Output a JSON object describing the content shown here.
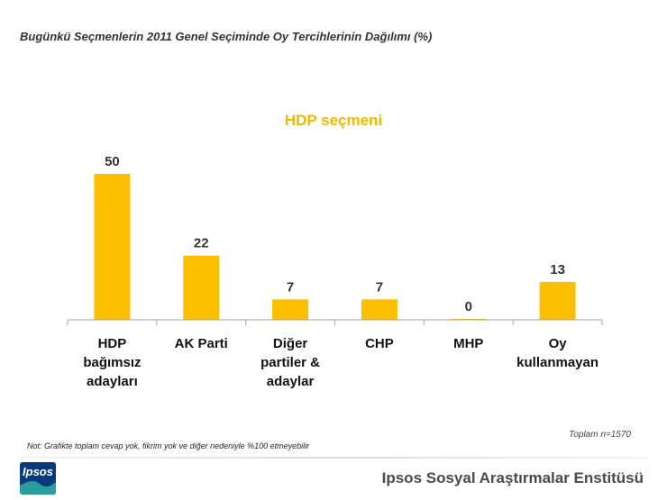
{
  "page": {
    "title": "Bugünkü Seçmenlerin 2011 Genel Seçiminde Oy Tercihlerinin Dağılımı (%)",
    "sample_note": "Toplam n=1570",
    "footnote": "Not: Grafikte toplam cevap yok, fikrim yok ve diğer nedeniyle %100 etmeyebilir",
    "institute": "Ipsos Sosyal Araştırmalar Enstitüsü",
    "logo_text": "Ipsos"
  },
  "colors": {
    "bar": "#fcc000",
    "title": "#f2b800"
  },
  "chart_data": {
    "type": "bar",
    "title": "HDP seçmeni",
    "xlabel": "",
    "ylabel": "",
    "ylim": [
      0,
      50
    ],
    "grid": false,
    "legend": "none",
    "categories": [
      [
        "HDP",
        "bağımsız",
        "adayları"
      ],
      [
        "AK Parti"
      ],
      [
        "Diğer",
        "partiler &",
        "adaylar"
      ],
      [
        "CHP"
      ],
      [
        "MHP"
      ],
      [
        "Oy",
        "kullanmayan"
      ]
    ],
    "values": [
      50,
      22,
      7,
      7,
      0,
      13
    ]
  }
}
